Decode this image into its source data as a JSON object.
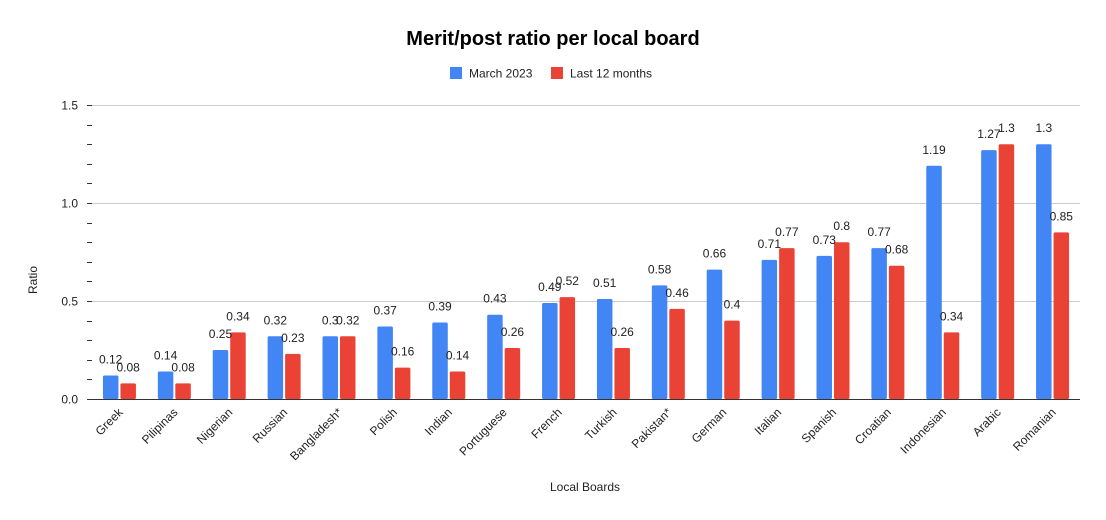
{
  "chart_data": {
    "type": "bar",
    "title": "Merit/post ratio per local board",
    "xlabel": "Local Boards",
    "ylabel": "Ratio",
    "ylim": [
      0,
      1.5
    ],
    "yticks": [
      "0.0",
      "0.5",
      "1.0",
      "1.5"
    ],
    "grid": true,
    "legend_position": "top",
    "categories": [
      "Greek",
      "Pilipinas",
      "Nigerian",
      "Russian",
      "Bangladesh*",
      "Polish",
      "Indian",
      "Portuguese",
      "French",
      "Turkish",
      "Pakistan*",
      "German",
      "Italian",
      "Spanish",
      "Croatian",
      "Indonesian",
      "Arabic",
      "Romanian"
    ],
    "series": [
      {
        "name": "March 2023",
        "color": "#4285f4",
        "values": [
          0.12,
          0.14,
          0.25,
          0.32,
          0.32,
          0.37,
          0.39,
          0.43,
          0.49,
          0.51,
          0.58,
          0.66,
          0.71,
          0.73,
          0.77,
          1.19,
          1.27,
          1.3
        ],
        "labels": [
          "0.12",
          "0.14",
          "0.25",
          "0.32",
          "0.3",
          "0.37",
          "0.39",
          "0.43",
          "0.49",
          "0.51",
          "0.58",
          "0.66",
          "0.71",
          "0.73",
          "0.77",
          "1.19",
          "1.27",
          "1.3"
        ]
      },
      {
        "name": "Last 12 months",
        "color": "#ea4335",
        "values": [
          0.08,
          0.08,
          0.34,
          0.23,
          0.32,
          0.16,
          0.14,
          0.26,
          0.52,
          0.26,
          0.46,
          0.4,
          0.77,
          0.8,
          0.68,
          0.34,
          1.3,
          0.85
        ],
        "labels": [
          "0.08",
          "0.08",
          "0.34",
          "0.23",
          "0.32",
          "0.16",
          "0.14",
          "0.26",
          "0.52",
          "0.26",
          "0.46",
          "0.4",
          "0.77",
          "0.8",
          "0.68",
          "0.34",
          "1.3",
          "0.85"
        ]
      }
    ]
  }
}
